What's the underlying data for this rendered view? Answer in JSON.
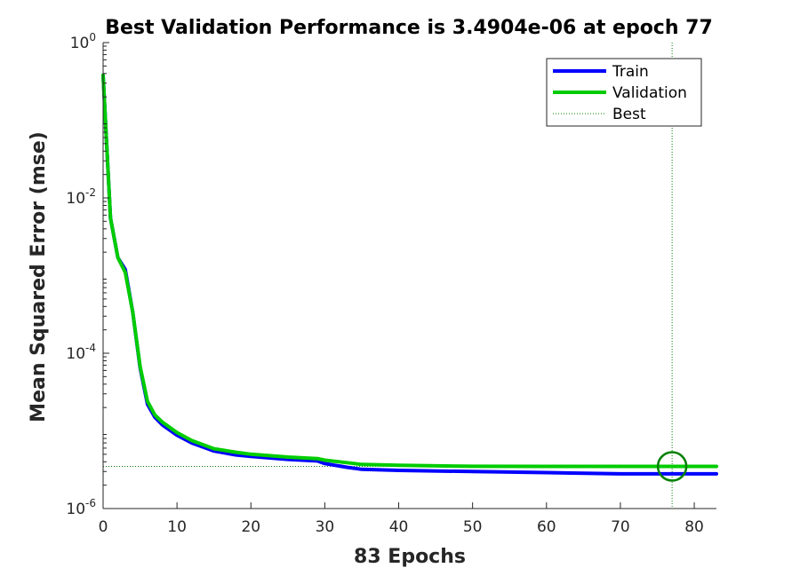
{
  "chart_data": {
    "type": "line",
    "title": "Best Validation Performance is 3.4904e-06 at epoch 77",
    "xlabel": "83 Epochs",
    "ylabel": "Mean Squared Error  (mse)",
    "xlim": [
      0,
      83
    ],
    "ylim": [
      1e-06,
      1
    ],
    "yscale": "log",
    "x_ticks": [
      0,
      10,
      20,
      30,
      40,
      50,
      60,
      70,
      80
    ],
    "y_ticks": [
      {
        "base": "10",
        "exp": "0"
      },
      {
        "base": "10",
        "exp": "-2"
      },
      {
        "base": "10",
        "exp": "-4"
      },
      {
        "base": "10",
        "exp": "-6"
      }
    ],
    "y_tick_values": [
      1,
      0.01,
      0.0001,
      1e-06
    ],
    "grid": false,
    "legend_position": "top-right",
    "series": [
      {
        "name": "Train",
        "color": "#0000ff",
        "style": "solid",
        "x": [
          0,
          1,
          2,
          3,
          4,
          5,
          6,
          7,
          8,
          10,
          12,
          15,
          18,
          20,
          25,
          29,
          30,
          33,
          35,
          40,
          50,
          60,
          70,
          77,
          83
        ],
        "values": [
          0.38,
          0.0055,
          0.0017,
          0.0012,
          0.00034,
          6.5e-05,
          2.2e-05,
          1.5e-05,
          1.2e-05,
          8.8e-06,
          7e-06,
          5.5e-06,
          4.9e-06,
          4.7e-06,
          4.3e-06,
          4.1e-06,
          3.8e-06,
          3.4e-06,
          3.2e-06,
          3.1e-06,
          3e-06,
          2.9e-06,
          2.8e-06,
          2.8e-06,
          2.8e-06
        ]
      },
      {
        "name": "Validation",
        "color": "#00cc00",
        "style": "solid",
        "x": [
          0,
          1,
          2,
          3,
          4,
          5,
          6,
          7,
          8,
          10,
          12,
          15,
          18,
          20,
          25,
          29,
          30,
          33,
          35,
          40,
          50,
          60,
          70,
          77,
          83
        ],
        "values": [
          0.38,
          0.0055,
          0.0017,
          0.0011,
          0.00034,
          6.8e-05,
          2.4e-05,
          1.6e-05,
          1.3e-05,
          9.5e-06,
          7.5e-06,
          5.9e-06,
          5.3e-06,
          5e-06,
          4.6e-06,
          4.4e-06,
          4.2e-06,
          3.9e-06,
          3.7e-06,
          3.6e-06,
          3.5e-06,
          3.49e-06,
          3.49e-06,
          3.4904e-06,
          3.4904e-06
        ]
      },
      {
        "name": "Best",
        "color": "#008000",
        "style": "dotted"
      }
    ],
    "best": {
      "epoch": 77,
      "value": 3.4904e-06
    }
  }
}
